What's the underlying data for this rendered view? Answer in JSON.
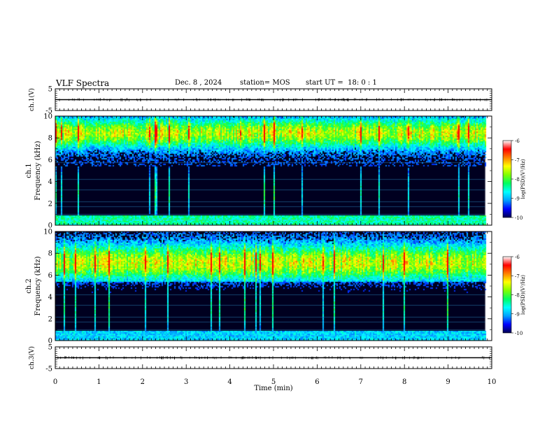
{
  "header": {
    "title": "VLF Spectra",
    "date": "Dec. 8 , 2024",
    "station": "station= MOS",
    "start_ut": "start UT =  18: 0 : 1"
  },
  "chart_data": [
    {
      "type": "line",
      "ylabel": "ch.1(V)",
      "xlim": [
        0,
        10
      ],
      "ylim": [
        -5,
        5
      ],
      "yticks": [
        "5",
        "-5"
      ],
      "series": [
        {
          "values": [
            [
              0,
              0.0
            ],
            [
              10,
              0.0
            ]
          ],
          "color": "#000000"
        }
      ]
    },
    {
      "type": "heatmap",
      "ylabel_ch": "ch.1",
      "ylabel": "Frequency (kHz)",
      "xlim": [
        0,
        10
      ],
      "ylim": [
        0,
        10
      ],
      "yticks": [
        "0",
        "2",
        "4",
        "6",
        "8",
        "10"
      ],
      "colorbar": {
        "label": "log(PSD)(V²/Hz)",
        "min": -10,
        "max": -6,
        "ticks": [
          "-6",
          "-7",
          "-8",
          "-9",
          "-10"
        ]
      },
      "data_extent_x": [
        0,
        9.85
      ]
    },
    {
      "type": "heatmap",
      "ylabel_ch": "ch.2",
      "ylabel": "Frequency (kHz)",
      "xlim": [
        0,
        10
      ],
      "ylim": [
        0,
        10
      ],
      "yticks": [
        "0",
        "2",
        "4",
        "6",
        "8",
        "10"
      ],
      "colorbar": {
        "label": "log(PSD)(V²/Hz)",
        "min": -10,
        "max": -6,
        "ticks": [
          "-6",
          "-7",
          "-8",
          "-9",
          "-10"
        ]
      },
      "data_extent_x": [
        0,
        9.85
      ]
    },
    {
      "type": "line",
      "ylabel": "ch.3(V)",
      "xlim": [
        0,
        10
      ],
      "ylim": [
        -5,
        5
      ],
      "yticks": [
        "5",
        "-5"
      ],
      "xlabel": "Time (min)",
      "xticks": [
        "0",
        "1",
        "2",
        "3",
        "4",
        "5",
        "6",
        "7",
        "8",
        "9",
        "10"
      ],
      "series": [
        {
          "values": [
            [
              0,
              0.0
            ],
            [
              10,
              0.0
            ]
          ],
          "color": "#000000"
        }
      ]
    }
  ],
  "colors": {
    "colormap": [
      "#000050",
      "#0000ff",
      "#00a0ff",
      "#00ffff",
      "#00ff60",
      "#80ff00",
      "#ffff00",
      "#ff8000",
      "#ff0000",
      "#ffffff"
    ],
    "line": "#000000"
  }
}
